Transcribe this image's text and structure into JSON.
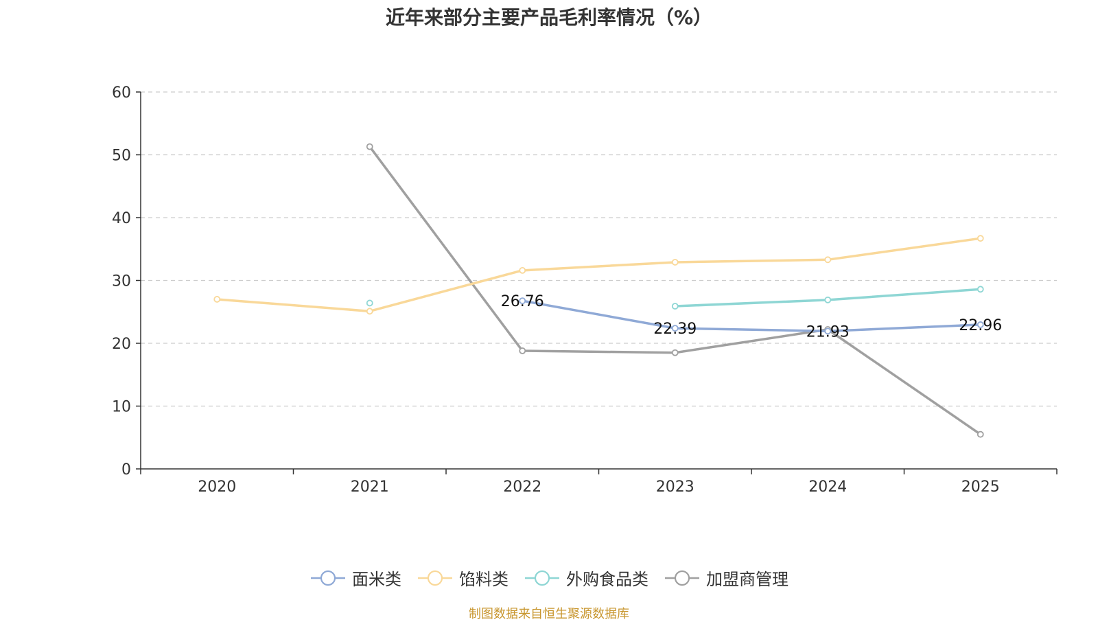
{
  "title": "近年来部分主要产品毛利率情况（%）",
  "source": "制图数据来自恒生聚源数据库",
  "chart_data": {
    "type": "line",
    "title": "近年来部分主要产品毛利率情况（%）",
    "x": [
      "2020",
      "2021",
      "2022",
      "2023",
      "2024",
      "2025"
    ],
    "ylim": [
      0,
      60
    ],
    "yticks": [
      0,
      10,
      20,
      30,
      40,
      50,
      60
    ],
    "grid": true,
    "legend_position": "bottom",
    "series": [
      {
        "name": "面米类",
        "color": "#8fa9d6",
        "values": [
          null,
          null,
          26.76,
          22.39,
          21.93,
          22.96
        ],
        "labels": [
          null,
          null,
          "26.76",
          "22.39",
          "21.93",
          "22.96"
        ]
      },
      {
        "name": "馅料类",
        "color": "#f9d899",
        "values": [
          27.0,
          25.1,
          31.6,
          32.9,
          33.3,
          36.7
        ],
        "labels": [
          null,
          null,
          null,
          null,
          null,
          null
        ]
      },
      {
        "name": "外购食品类",
        "color": "#8ed6d4",
        "values": [
          null,
          26.4,
          null,
          25.9,
          26.9,
          28.6
        ],
        "labels": [
          null,
          null,
          null,
          null,
          null,
          null
        ]
      },
      {
        "name": "加盟商管理",
        "color": "#a0a0a0",
        "values": [
          null,
          51.3,
          18.8,
          18.5,
          22.2,
          5.5
        ],
        "labels": [
          null,
          null,
          null,
          null,
          null,
          null
        ]
      }
    ]
  }
}
